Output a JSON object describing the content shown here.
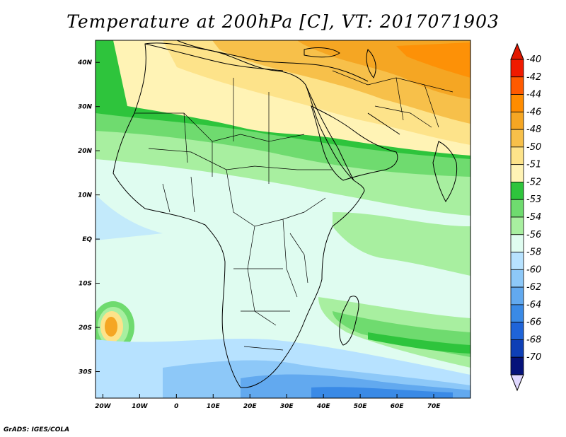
{
  "title": "Temperature at 200hPa [C], VT: 2017071903",
  "credit": "GrADS: IGES/COLA",
  "map": {
    "lon_range": [
      -22,
      80
    ],
    "lat_range": [
      -36,
      45
    ],
    "lon_ticks": [
      {
        "value": -20,
        "label": "20W"
      },
      {
        "value": -10,
        "label": "10W"
      },
      {
        "value": 0,
        "label": "0"
      },
      {
        "value": 10,
        "label": "10E"
      },
      {
        "value": 20,
        "label": "20E"
      },
      {
        "value": 30,
        "label": "30E"
      },
      {
        "value": 40,
        "label": "40E"
      },
      {
        "value": 50,
        "label": "50E"
      },
      {
        "value": 60,
        "label": "60E"
      },
      {
        "value": 70,
        "label": "70E"
      }
    ],
    "lat_ticks": [
      {
        "value": 40,
        "label": "40N"
      },
      {
        "value": 30,
        "label": "30N"
      },
      {
        "value": 20,
        "label": "20N"
      },
      {
        "value": 10,
        "label": "10N"
      },
      {
        "value": 0,
        "label": "EQ"
      },
      {
        "value": -10,
        "label": "10S"
      },
      {
        "value": -20,
        "label": "20S"
      },
      {
        "value": -30,
        "label": "30S"
      }
    ]
  },
  "colorbar": {
    "labels": [
      "-40",
      "-42",
      "-44",
      "-46",
      "-48",
      "-50",
      "-51",
      "-52",
      "-53",
      "-54",
      "-56",
      "-58",
      "-60",
      "-62",
      "-64",
      "-66",
      "-68",
      "-70"
    ],
    "colors": [
      "#f01a00",
      "#ff5a00",
      "#ff8c00",
      "#f5a623",
      "#f7c04a",
      "#fde38a",
      "#fff3b5",
      "#2ec43c",
      "#6fdb6f",
      "#a8efa0",
      "#dffcf0",
      "#b7e2ff",
      "#8dc8f8",
      "#62a9ef",
      "#3a8ae6",
      "#1f64d8",
      "#0e3fb6",
      "#05127a"
    ],
    "top_arrow_color": "#e21800",
    "bottom_arrow_color": "#e0d8ff"
  }
}
